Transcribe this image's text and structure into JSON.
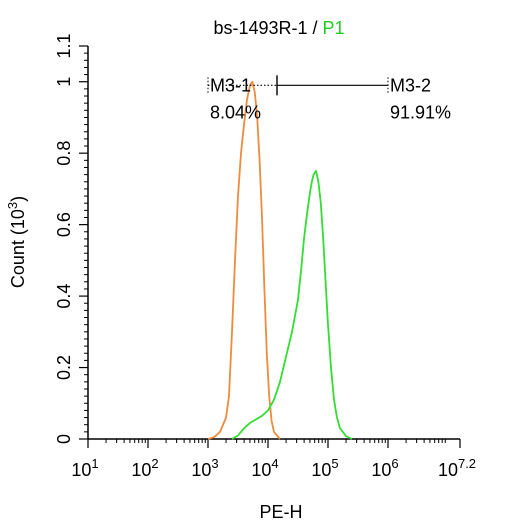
{
  "title": {
    "main": "bs-1493R-1 / ",
    "highlight": "P1",
    "highlight_color": "#22cc22"
  },
  "chart_data": {
    "type": "line",
    "xlabel": "PE-H",
    "ylabel": {
      "prefix": "Count  (10",
      "exp": "3",
      "suffix": ")"
    },
    "x_scale": "log",
    "xlim": [
      1,
      7.2
    ],
    "ylim": [
      0,
      1.1
    ],
    "x_ticks": [
      {
        "v": 1,
        "base": "10",
        "exp": "1"
      },
      {
        "v": 2,
        "base": "10",
        "exp": "2"
      },
      {
        "v": 3,
        "base": "10",
        "exp": "3"
      },
      {
        "v": 4,
        "base": "10",
        "exp": "4"
      },
      {
        "v": 5,
        "base": "10",
        "exp": "5"
      },
      {
        "v": 6,
        "base": "10",
        "exp": "6"
      },
      {
        "v": 7.2,
        "base": "10",
        "exp": "7.2"
      }
    ],
    "y_ticks": [
      {
        "v": 0,
        "label": "0"
      },
      {
        "v": 0.2,
        "label": "0.2"
      },
      {
        "v": 0.4,
        "label": "0.4"
      },
      {
        "v": 0.6,
        "label": "0.6"
      },
      {
        "v": 0.8,
        "label": "0.8"
      },
      {
        "v": 1.0,
        "label": "1"
      },
      {
        "v": 1.1,
        "label": "1.1"
      }
    ],
    "series": [
      {
        "color": "#f08a3c",
        "points": [
          [
            3.0,
            0
          ],
          [
            3.1,
            0.005
          ],
          [
            3.2,
            0.02
          ],
          [
            3.3,
            0.06
          ],
          [
            3.35,
            0.12
          ],
          [
            3.4,
            0.3
          ],
          [
            3.45,
            0.5
          ],
          [
            3.5,
            0.68
          ],
          [
            3.55,
            0.8
          ],
          [
            3.6,
            0.88
          ],
          [
            3.65,
            0.95
          ],
          [
            3.7,
            0.99
          ],
          [
            3.74,
            1.0
          ],
          [
            3.78,
            0.97
          ],
          [
            3.82,
            0.9
          ],
          [
            3.86,
            0.78
          ],
          [
            3.9,
            0.62
          ],
          [
            3.94,
            0.42
          ],
          [
            3.98,
            0.24
          ],
          [
            4.02,
            0.12
          ],
          [
            4.06,
            0.05
          ],
          [
            4.1,
            0.02
          ],
          [
            4.2,
            0
          ]
        ]
      },
      {
        "color": "#33dd33",
        "points": [
          [
            3.4,
            0
          ],
          [
            3.5,
            0.01
          ],
          [
            3.6,
            0.03
          ],
          [
            3.7,
            0.045
          ],
          [
            3.8,
            0.055
          ],
          [
            3.9,
            0.065
          ],
          [
            4.0,
            0.08
          ],
          [
            4.1,
            0.11
          ],
          [
            4.2,
            0.16
          ],
          [
            4.3,
            0.23
          ],
          [
            4.4,
            0.3
          ],
          [
            4.5,
            0.39
          ],
          [
            4.55,
            0.47
          ],
          [
            4.6,
            0.56
          ],
          [
            4.65,
            0.63
          ],
          [
            4.7,
            0.69
          ],
          [
            4.73,
            0.72
          ],
          [
            4.76,
            0.74
          ],
          [
            4.8,
            0.75
          ],
          [
            4.84,
            0.72
          ],
          [
            4.88,
            0.66
          ],
          [
            4.92,
            0.56
          ],
          [
            4.96,
            0.44
          ],
          [
            5.0,
            0.32
          ],
          [
            5.05,
            0.2
          ],
          [
            5.1,
            0.11
          ],
          [
            5.15,
            0.06
          ],
          [
            5.2,
            0.03
          ],
          [
            5.3,
            0.008
          ],
          [
            5.4,
            0
          ]
        ]
      }
    ],
    "gates": [
      {
        "name": "M3-1",
        "percent": "8.04%",
        "start": 3.0,
        "end": 4.15,
        "style": "dotted"
      },
      {
        "name": "M3-2",
        "percent": "91.91%",
        "start": 4.15,
        "end": 6.0,
        "style": "solid"
      }
    ],
    "gate_y": 0.99
  }
}
